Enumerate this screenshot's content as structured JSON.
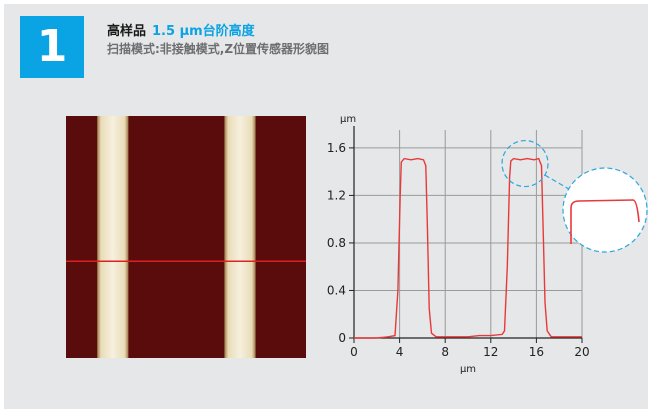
{
  "header": {
    "badge_number": "1",
    "title_main": "高样品",
    "title_sub": "1.5 μm台阶高度",
    "subtitle": "扫描模式:非接触模式,Z位置传感器形貌图"
  },
  "colors": {
    "accent": "#0aa3e3",
    "panel_bg": "#e6e7e8",
    "afm_dark": "#5a0c0c",
    "afm_light": "#f3ecd6",
    "scan_line": "#e02020",
    "profile_line": "#e8393a",
    "callout": "#29a8dd",
    "grid": "#9a9a9a"
  },
  "afm_image": {
    "stripes": [
      {
        "start": 0.13,
        "end": 0.26
      },
      {
        "start": 0.66,
        "end": 0.79
      }
    ],
    "scan_line_fraction": 0.6
  },
  "chart_data": {
    "type": "line",
    "title": "",
    "xlabel": "μm",
    "ylabel": "μm",
    "xlim": [
      0,
      20
    ],
    "ylim": [
      0,
      1.7
    ],
    "xticks": [
      0,
      4,
      8,
      12,
      16,
      20
    ],
    "yticks": [
      0,
      0.4,
      0.8,
      1.2,
      1.6
    ],
    "xtick_labels": [
      "0",
      "4",
      "8",
      "12",
      "16",
      "20"
    ],
    "ytick_labels": [
      "0",
      "0.4",
      "0.8",
      "1.2",
      "1.6"
    ],
    "grid": true,
    "series": [
      {
        "x": [
          0.0,
          1.0,
          2.0,
          3.0,
          3.6,
          3.85,
          4.05,
          4.15,
          4.4,
          5.0,
          5.6,
          6.1,
          6.3,
          6.45,
          6.6,
          6.8,
          7.2,
          8.0,
          9.0,
          10.0,
          11.0,
          12.0,
          13.0,
          13.2,
          13.45,
          13.65,
          13.75,
          14.0,
          14.6,
          15.2,
          15.8,
          16.2,
          16.45,
          16.6,
          16.75,
          16.95,
          17.3,
          18.0,
          19.0,
          20.0
        ],
        "y": [
          0.0,
          0.0,
          0.0,
          0.01,
          0.02,
          0.4,
          1.2,
          1.48,
          1.51,
          1.5,
          1.51,
          1.5,
          1.45,
          0.9,
          0.25,
          0.04,
          0.01,
          0.01,
          0.01,
          0.01,
          0.02,
          0.02,
          0.03,
          0.06,
          0.6,
          1.35,
          1.49,
          1.51,
          1.5,
          1.51,
          1.5,
          1.51,
          1.45,
          0.9,
          0.3,
          0.06,
          0.01,
          0.01,
          0.01,
          0.01
        ]
      }
    ],
    "annotations": [
      {
        "type": "zoom-callout",
        "target_x": 15.0,
        "target_y": 1.51
      }
    ]
  }
}
